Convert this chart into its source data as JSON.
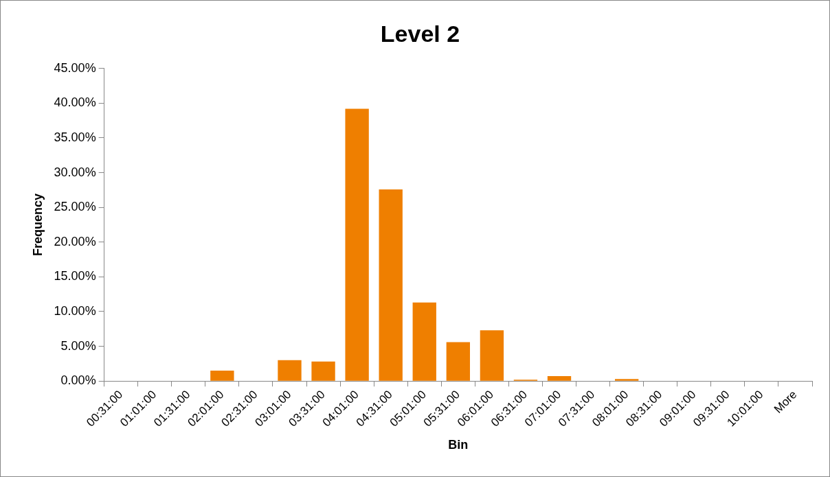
{
  "chart_data": {
    "type": "bar",
    "title": "Level 2",
    "xlabel": "Bin",
    "ylabel": "Frequency",
    "categories": [
      "00:31:00",
      "01:01:00",
      "01:31:00",
      "02:01:00",
      "02:31:00",
      "03:01:00",
      "03:31:00",
      "04:01:00",
      "04:31:00",
      "05:01:00",
      "05:31:00",
      "06:01:00",
      "06:31:00",
      "07:01:00",
      "07:31:00",
      "08:01:00",
      "08:31:00",
      "09:01:00",
      "09:31:00",
      "10:01:00",
      "More"
    ],
    "series": [
      {
        "color": "#ef7f00",
        "values": [
          0,
          0,
          0,
          1.5,
          0,
          3.0,
          2.8,
          39.2,
          27.6,
          11.3,
          5.6,
          7.3,
          0.2,
          0.7,
          0,
          0.3,
          0,
          0,
          0,
          0,
          0
        ]
      }
    ],
    "ylim": [
      0,
      45
    ],
    "yticks": [
      {
        "value": 0,
        "label": "0.00%"
      },
      {
        "value": 5,
        "label": "5.00%"
      },
      {
        "value": 10,
        "label": "10.00%"
      },
      {
        "value": 15,
        "label": "15.00%"
      },
      {
        "value": 20,
        "label": "20.00%"
      },
      {
        "value": 25,
        "label": "25.00%"
      },
      {
        "value": 30,
        "label": "30.00%"
      },
      {
        "value": 35,
        "label": "35.00%"
      },
      {
        "value": 40,
        "label": "40.00%"
      },
      {
        "value": 45,
        "label": "45.00%"
      }
    ],
    "grid": false,
    "legend": false
  }
}
